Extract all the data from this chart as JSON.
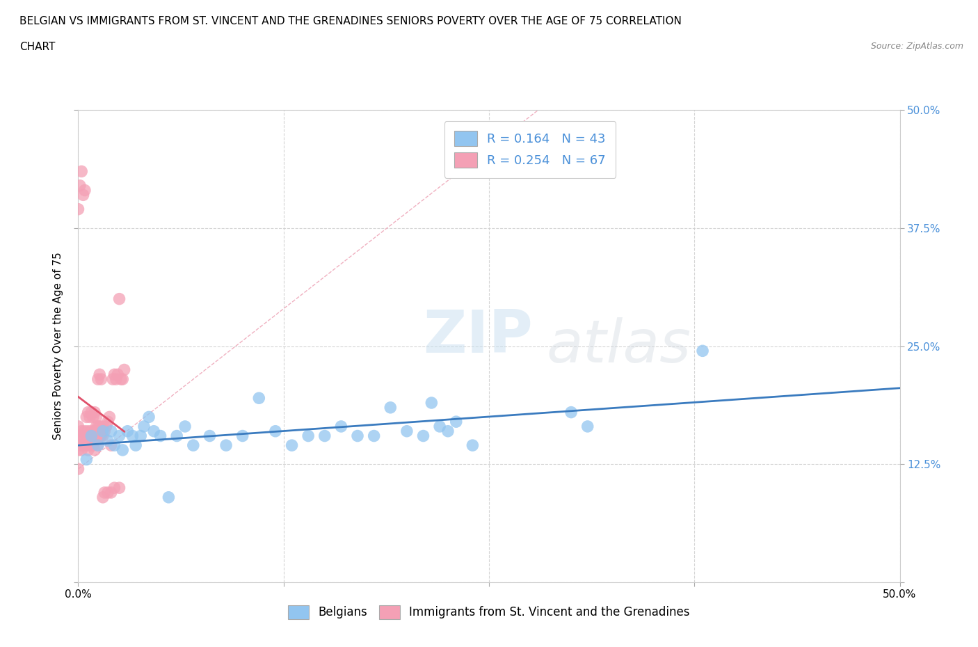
{
  "title_line1": "BELGIAN VS IMMIGRANTS FROM ST. VINCENT AND THE GRENADINES SENIORS POVERTY OVER THE AGE OF 75 CORRELATION",
  "title_line2": "CHART",
  "source": "Source: ZipAtlas.com",
  "ylabel": "Seniors Poverty Over the Age of 75",
  "xmin": 0.0,
  "xmax": 0.5,
  "ymin": 0.0,
  "ymax": 0.5,
  "xticks": [
    0.0,
    0.125,
    0.25,
    0.375,
    0.5
  ],
  "xticklabels": [
    "0.0%",
    "",
    "",
    "",
    "50.0%"
  ],
  "yticks": [
    0.0,
    0.125,
    0.25,
    0.375,
    0.5
  ],
  "right_yticklabels": [
    "",
    "12.5%",
    "25.0%",
    "37.5%",
    "50.0%"
  ],
  "belgian_R": 0.164,
  "belgian_N": 43,
  "immigrant_R": 0.254,
  "immigrant_N": 67,
  "belgian_color": "#92c5f0",
  "immigrant_color": "#f4a0b5",
  "belgian_line_color": "#3a7bbf",
  "immigrant_line_color": "#e0506a",
  "diag_line_color": "#f0b0c0",
  "belgian_scatter_x": [
    0.005,
    0.008,
    0.012,
    0.015,
    0.018,
    0.02,
    0.022,
    0.025,
    0.027,
    0.03,
    0.033,
    0.035,
    0.038,
    0.04,
    0.043,
    0.046,
    0.05,
    0.055,
    0.06,
    0.065,
    0.07,
    0.08,
    0.09,
    0.1,
    0.11,
    0.12,
    0.13,
    0.14,
    0.15,
    0.16,
    0.17,
    0.18,
    0.19,
    0.2,
    0.21,
    0.215,
    0.22,
    0.225,
    0.23,
    0.24,
    0.3,
    0.31,
    0.38
  ],
  "belgian_scatter_y": [
    0.13,
    0.155,
    0.145,
    0.16,
    0.15,
    0.16,
    0.145,
    0.155,
    0.14,
    0.16,
    0.155,
    0.145,
    0.155,
    0.165,
    0.175,
    0.16,
    0.155,
    0.09,
    0.155,
    0.165,
    0.145,
    0.155,
    0.145,
    0.155,
    0.195,
    0.16,
    0.145,
    0.155,
    0.155,
    0.165,
    0.155,
    0.155,
    0.185,
    0.16,
    0.155,
    0.19,
    0.165,
    0.16,
    0.17,
    0.145,
    0.18,
    0.165,
    0.245
  ],
  "immigrant_scatter_x": [
    0.0,
    0.0,
    0.0,
    0.0,
    0.001,
    0.001,
    0.002,
    0.002,
    0.003,
    0.003,
    0.004,
    0.004,
    0.005,
    0.005,
    0.006,
    0.006,
    0.007,
    0.007,
    0.008,
    0.008,
    0.009,
    0.009,
    0.01,
    0.01,
    0.011,
    0.011,
    0.012,
    0.012,
    0.013,
    0.013,
    0.014,
    0.015,
    0.015,
    0.016,
    0.017,
    0.018,
    0.019,
    0.02,
    0.021,
    0.022,
    0.023,
    0.024,
    0.025,
    0.026,
    0.027,
    0.028,
    0.0,
    0.001,
    0.002,
    0.003,
    0.004,
    0.005,
    0.006,
    0.007,
    0.008,
    0.009,
    0.01,
    0.011,
    0.012,
    0.013,
    0.014,
    0.015,
    0.016,
    0.018,
    0.02,
    0.022,
    0.025
  ],
  "immigrant_scatter_y": [
    0.12,
    0.14,
    0.155,
    0.165,
    0.145,
    0.155,
    0.14,
    0.16,
    0.145,
    0.155,
    0.145,
    0.16,
    0.145,
    0.155,
    0.14,
    0.16,
    0.145,
    0.155,
    0.145,
    0.16,
    0.145,
    0.155,
    0.14,
    0.16,
    0.155,
    0.165,
    0.145,
    0.165,
    0.155,
    0.165,
    0.155,
    0.155,
    0.165,
    0.16,
    0.165,
    0.17,
    0.175,
    0.145,
    0.215,
    0.22,
    0.215,
    0.22,
    0.3,
    0.215,
    0.215,
    0.225,
    0.395,
    0.42,
    0.435,
    0.41,
    0.415,
    0.175,
    0.18,
    0.175,
    0.18,
    0.175,
    0.18,
    0.175,
    0.215,
    0.22,
    0.215,
    0.09,
    0.095,
    0.095,
    0.095,
    0.1,
    0.1
  ],
  "watermark_zip": "ZIP",
  "watermark_atlas": "atlas",
  "legend_belgian_label": "Belgians",
  "legend_immigrant_label": "Immigrants from St. Vincent and the Grenadines",
  "background_color": "#ffffff",
  "grid_color": "#d0d0d0",
  "title_fontsize": 11,
  "axis_label_fontsize": 11,
  "tick_fontsize": 11,
  "legend_fontsize": 13,
  "right_tick_color": "#4a90d9"
}
